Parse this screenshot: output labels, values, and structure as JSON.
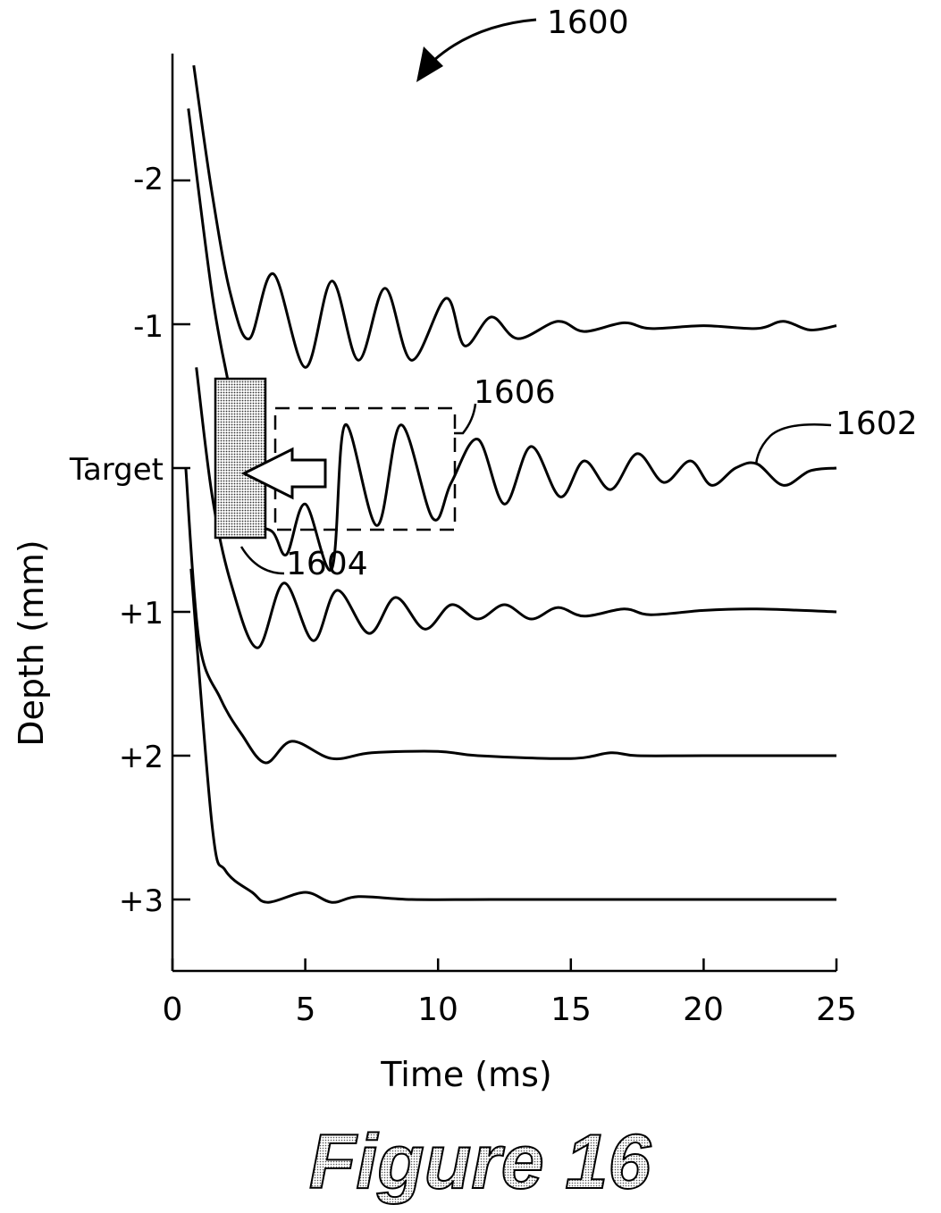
{
  "figure_label": "Figure 16",
  "chart_data": {
    "type": "line",
    "title": "",
    "xlabel": "Time (ms)",
    "ylabel": "Depth (mm)",
    "xlim": [
      0,
      25
    ],
    "x_ticks": [
      "0",
      "5",
      "10",
      "15",
      "20",
      "25"
    ],
    "y_ticks": [
      "-2",
      "-1",
      "Target",
      "+1",
      "+2",
      "+3"
    ],
    "grid": false,
    "series": [
      {
        "values": [
          [
            0.8,
            -2.8
          ],
          [
            1.5,
            -1.9
          ],
          [
            2.2,
            -1.2
          ],
          [
            2.9,
            -0.9
          ],
          [
            3.8,
            -1.35
          ],
          [
            5,
            -0.7
          ],
          [
            6,
            -1.3
          ],
          [
            7,
            -0.75
          ],
          [
            8,
            -1.25
          ],
          [
            9,
            -0.75
          ],
          [
            10.3,
            -1.18
          ],
          [
            11,
            -0.85
          ],
          [
            12,
            -1.05
          ],
          [
            13,
            -0.9
          ],
          [
            14.5,
            -1.02
          ],
          [
            15.5,
            -0.95
          ],
          [
            17,
            -1.01
          ],
          [
            18,
            -0.97
          ],
          [
            20,
            -0.99
          ],
          [
            22,
            -0.97
          ],
          [
            23,
            -1.02
          ],
          [
            24,
            -0.96
          ],
          [
            25,
            -0.99
          ]
        ]
      },
      {
        "values": [
          [
            0.6,
            -2.5
          ],
          [
            1.5,
            -1.2
          ],
          [
            2.2,
            -0.5
          ],
          [
            3,
            0.3
          ],
          [
            3.8,
            0.45
          ],
          [
            4.3,
            0.6
          ],
          [
            5,
            0.25
          ],
          [
            6,
            0.7
          ],
          [
            6.5,
            -0.3
          ],
          [
            7.7,
            0.4
          ],
          [
            8.6,
            -0.3
          ],
          [
            9.8,
            0.35
          ],
          [
            10.5,
            0.1
          ],
          [
            11.5,
            -0.2
          ],
          [
            12.5,
            0.25
          ],
          [
            13.5,
            -0.15
          ],
          [
            14.6,
            0.2
          ],
          [
            15.5,
            -0.05
          ],
          [
            16.5,
            0.15
          ],
          [
            17.5,
            -0.1
          ],
          [
            18.5,
            0.1
          ],
          [
            19.5,
            -0.05
          ],
          [
            20.3,
            0.12
          ],
          [
            21.2,
            0
          ],
          [
            22,
            -0.03
          ],
          [
            23,
            0.12
          ],
          [
            24,
            0.02
          ],
          [
            25,
            0
          ]
        ]
      },
      {
        "values": [
          [
            0.9,
            -0.7
          ],
          [
            1.5,
            0.2
          ],
          [
            2.2,
            0.8
          ],
          [
            3.2,
            1.25
          ],
          [
            4.2,
            0.8
          ],
          [
            5.3,
            1.2
          ],
          [
            6.2,
            0.85
          ],
          [
            7.4,
            1.15
          ],
          [
            8.4,
            0.9
          ],
          [
            9.5,
            1.12
          ],
          [
            10.5,
            0.95
          ],
          [
            11.5,
            1.05
          ],
          [
            12.5,
            0.95
          ],
          [
            13.5,
            1.05
          ],
          [
            14.5,
            0.97
          ],
          [
            15.5,
            1.03
          ],
          [
            17,
            0.98
          ],
          [
            18,
            1.02
          ],
          [
            20,
            0.99
          ],
          [
            22,
            0.98
          ],
          [
            25,
            1
          ]
        ]
      },
      {
        "values": [
          [
            0.5,
            0
          ],
          [
            1,
            1.2
          ],
          [
            1.8,
            1.6
          ],
          [
            2.6,
            1.85
          ],
          [
            3.5,
            2.05
          ],
          [
            4.5,
            1.9
          ],
          [
            6,
            2.02
          ],
          [
            7.5,
            1.98
          ],
          [
            10,
            1.97
          ],
          [
            11.5,
            2.0
          ],
          [
            15,
            2.02
          ],
          [
            16.5,
            1.98
          ],
          [
            17.5,
            2.0
          ],
          [
            20,
            2.0
          ],
          [
            25,
            2.0
          ]
        ]
      },
      {
        "values": [
          [
            0.7,
            0.7
          ],
          [
            1.5,
            2.5
          ],
          [
            2,
            2.8
          ],
          [
            3,
            2.95
          ],
          [
            3.6,
            3.02
          ],
          [
            5,
            2.95
          ],
          [
            6,
            3.02
          ],
          [
            7,
            2.98
          ],
          [
            9,
            3.0
          ],
          [
            12,
            3.0
          ],
          [
            15,
            3.0
          ],
          [
            20,
            3.0
          ],
          [
            25,
            3.0
          ]
        ]
      }
    ],
    "annotations": [
      {
        "text": "1600"
      },
      {
        "text": "1602"
      },
      {
        "text": "1604"
      },
      {
        "text": "1606"
      }
    ]
  }
}
